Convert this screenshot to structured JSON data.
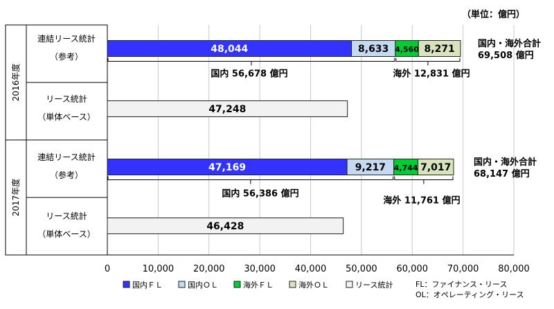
{
  "chart_data": {
    "type": "bar",
    "orientation": "horizontal",
    "stacked": true,
    "unit_label": "（単位：億円）",
    "xlim": [
      0,
      80000
    ],
    "x_ticks": [
      "0",
      "10,000",
      "20,000",
      "30,000",
      "40,000",
      "50,000",
      "60,000",
      "70,000",
      "80,000"
    ],
    "grid": true,
    "legend_placement": "bottom",
    "groups": [
      {
        "year": "2016年度",
        "rows": [
          {
            "label": [
              "連結リース統計",
              "（参考）"
            ],
            "segments": [
              {
                "series": "国内ＦＬ",
                "value": 48044,
                "label": "48,044"
              },
              {
                "series": "国内ＯＬ",
                "value": 8633,
                "label": "8,633"
              },
              {
                "series": "海外ＦＬ",
                "value": 4560,
                "label": "4,560"
              },
              {
                "series": "海外ＯＬ",
                "value": 8271,
                "label": "8,271"
              }
            ],
            "domestic_label": "国内 56,678 億円",
            "overseas_label": "海外 12,831 億円",
            "total_label": [
              "国内・海外合計",
              "69,508 億円"
            ]
          },
          {
            "label": [
              "リース統計",
              "（単体ベース）"
            ],
            "segments": [
              {
                "series": "リース統計",
                "value": 47248,
                "label": "47,248"
              }
            ]
          }
        ]
      },
      {
        "year": "2017年度",
        "rows": [
          {
            "label": [
              "連結リース統計",
              "（参考）"
            ],
            "segments": [
              {
                "series": "国内ＦＬ",
                "value": 47169,
                "label": "47,169"
              },
              {
                "series": "国内ＯＬ",
                "value": 9217,
                "label": "9,217"
              },
              {
                "series": "海外ＦＬ",
                "value": 4744,
                "label": "4,744"
              },
              {
                "series": "海外ＯＬ",
                "value": 7017,
                "label": "7,017"
              }
            ],
            "domestic_label": "国内 56,386 億円",
            "overseas_label": "海外 11,761 億円",
            "total_label": [
              "国内・海外合計",
              "68,147 億円"
            ]
          },
          {
            "label": [
              "リース統計",
              "（単体ベース）"
            ],
            "segments": [
              {
                "series": "リース統計",
                "value": 46428,
                "label": "46,428"
              }
            ]
          }
        ]
      }
    ],
    "legend": [
      {
        "name": "国内ＦＬ",
        "color": "#3333ff"
      },
      {
        "name": "国内ＯＬ",
        "color": "#c5d9f1"
      },
      {
        "name": "海外ＦＬ",
        "color": "#00cc33"
      },
      {
        "name": "海外ＯＬ",
        "color": "#d8e4bc"
      },
      {
        "name": "リース統計",
        "color": "#f2f2f2"
      }
    ],
    "footnotes": [
      "FL：ファイナンス・リース",
      "OL：オペレーティング・リース"
    ]
  }
}
